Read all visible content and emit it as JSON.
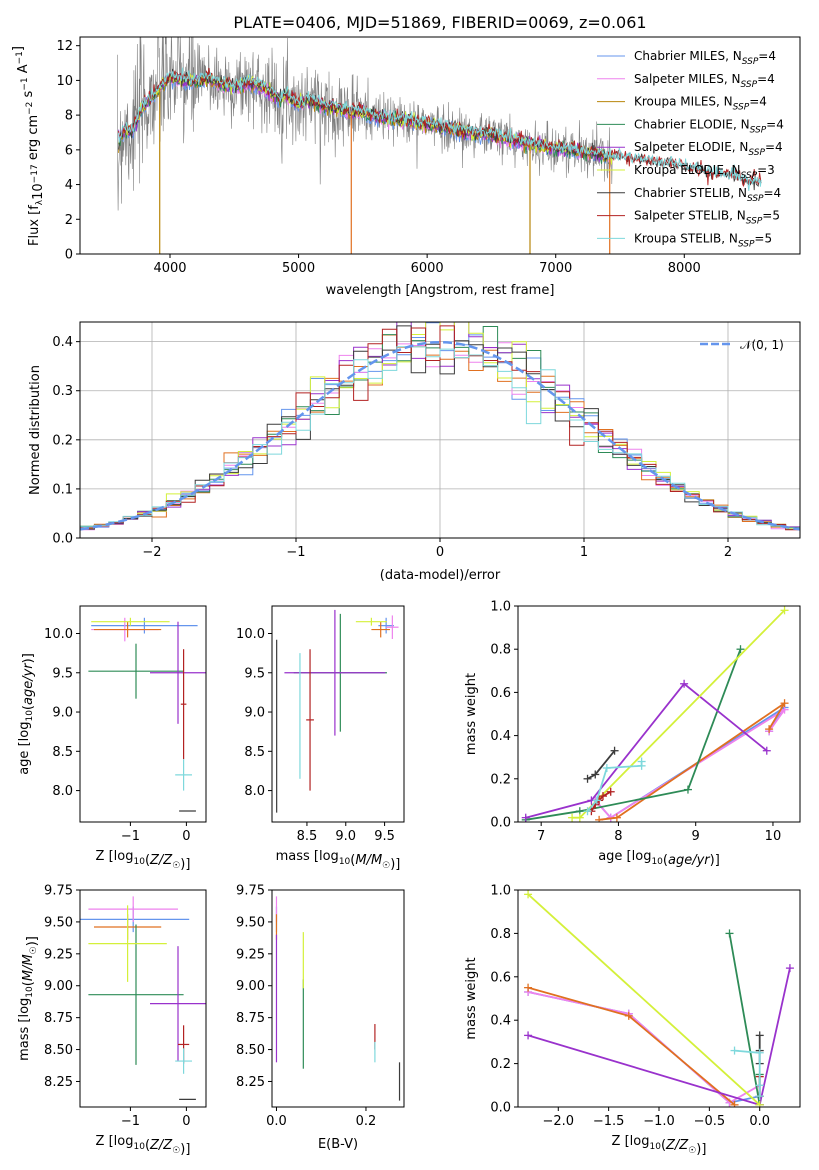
{
  "chart_data": [
    {
      "id": "spectrum",
      "type": "line",
      "title": "PLATE=0406, MJD=51869, FIBERID=0069, z=0.061",
      "xlabel": "wavelength [Angstrom, rest frame]",
      "ylabel": "Flux [f_λ10^-17 erg cm^-2 s^-1 A^-1]",
      "xlim": [
        3300,
        8900
      ],
      "ylim": [
        0,
        12.5
      ],
      "xticks": [
        4000,
        5000,
        6000,
        7000,
        8000
      ],
      "yticks": [
        0,
        2,
        4,
        6,
        8,
        10,
        12
      ],
      "grid": false,
      "legend_position": "top-right",
      "observed_color": "#7f7f7f",
      "model_continuum": {
        "x": [
          3600,
          3650,
          3700,
          3800,
          3900,
          4000,
          4100,
          4200,
          4300,
          4400,
          4500,
          4600,
          4700,
          4800,
          4860,
          4900,
          5000,
          5100,
          5200,
          5300,
          5400,
          5500,
          5600,
          5700,
          5800,
          5900,
          6000,
          6100,
          6200,
          6300,
          6400,
          6500,
          6600,
          6700,
          6800,
          6900,
          7000,
          7100,
          7200,
          7300,
          7400,
          7500,
          7600,
          7700,
          7800,
          7900,
          8000,
          8100,
          8200,
          8300,
          8400,
          8500,
          8600
        ],
        "y": [
          6.5,
          7.2,
          7.0,
          8.6,
          9.4,
          10.2,
          10.0,
          9.9,
          10.1,
          9.8,
          9.6,
          9.8,
          9.7,
          9.2,
          8.9,
          9.2,
          8.6,
          8.9,
          8.5,
          8.4,
          8.2,
          8.2,
          7.9,
          7.8,
          7.7,
          7.6,
          7.5,
          7.3,
          7.2,
          7.0,
          6.9,
          6.9,
          6.7,
          6.5,
          6.3,
          6.2,
          6.1,
          6.0,
          5.9,
          5.8,
          5.6,
          5.5,
          5.4,
          5.35,
          5.2,
          5.1,
          5.0,
          4.8,
          4.6,
          4.5,
          4.4,
          4.1,
          4.0
        ]
      },
      "observed_noise": 1.2,
      "series": [
        {
          "name": "Chabrier MILES, N_SSP=4",
          "color": "#6495ed"
        },
        {
          "name": "Salpeter MILES, N_SSP=4",
          "color": "#ee82ee"
        },
        {
          "name": "Kroupa MILES, N_SSP=4",
          "color": "#b8860b"
        },
        {
          "name": "Chabrier ELODIE, N_SSP=4",
          "color": "#2e8b57"
        },
        {
          "name": "Salpeter ELODIE, N_SSP=4",
          "color": "#9932cc"
        },
        {
          "name": "Kroupa ELODIE, N_SSP=3",
          "color": "#d4f03a"
        },
        {
          "name": "Chabrier STELIB, N_SSP=4",
          "color": "#3c3c3c"
        },
        {
          "name": "Salpeter STELIB, N_SSP=5",
          "color": "#b22222"
        },
        {
          "name": "Kroupa STELIB, N_SSP=5",
          "color": "#7ed8dc"
        }
      ],
      "legend_entries": [
        {
          "pre": "Chabrier MILES, N",
          "sub": "SSP",
          "post": "=4"
        },
        {
          "pre": "Salpeter MILES, N",
          "sub": "SSP",
          "post": "=4"
        },
        {
          "pre": "Kroupa MILES, N",
          "sub": "SSP",
          "post": "=4"
        },
        {
          "pre": "Chabrier ELODIE, N",
          "sub": "SSP",
          "post": "=4"
        },
        {
          "pre": "Salpeter ELODIE, N",
          "sub": "SSP",
          "post": "=4"
        },
        {
          "pre": "Kroupa ELODIE, N",
          "sub": "SSP",
          "post": "=3"
        },
        {
          "pre": "Chabrier STELIB, N",
          "sub": "SSP",
          "post": "=4"
        },
        {
          "pre": "Salpeter STELIB, N",
          "sub": "SSP",
          "post": "=5"
        },
        {
          "pre": "Kroupa STELIB, N",
          "sub": "SSP",
          "post": "=5"
        }
      ],
      "spikes": [
        {
          "x": 3920,
          "y": 0.0,
          "color": "#b8860b"
        },
        {
          "x": 5410,
          "y": 0.0,
          "color": "#e07020"
        },
        {
          "x": 6800,
          "y": 0.0,
          "color": "#b8860b"
        },
        {
          "x": 7420,
          "y": 0.0,
          "color": "#e07020"
        }
      ]
    },
    {
      "id": "residuals",
      "type": "line",
      "xlabel": "(data-model)/error",
      "ylabel": "Normed distribution",
      "xlim": [
        -2.5,
        2.5
      ],
      "ylim": [
        0,
        0.44
      ],
      "xticks": [
        -2,
        -1,
        0,
        1,
        2
      ],
      "yticks": [
        0.0,
        0.1,
        0.2,
        0.3,
        0.4
      ],
      "grid": true,
      "legend_position": "top-right",
      "reference_label": "𝒩(0, 1)",
      "reference_color": "#6495ed",
      "bin_width": 0.1,
      "series_colors": [
        "#6495ed",
        "#ee82ee",
        "#e07020",
        "#2e8b57",
        "#9932cc",
        "#d4f03a",
        "#3c3c3c",
        "#b22222",
        "#7ed8dc"
      ]
    },
    {
      "id": "age-vs-Z",
      "type": "scatter",
      "xlabel": "Z [log10(Z/Z☉)]",
      "ylabel": "age [log10(age/yr)]",
      "xlim": [
        -1.9,
        0.35
      ],
      "ylim": [
        7.6,
        10.35
      ],
      "xticks": [
        -1,
        0
      ],
      "yticks": [
        8.0,
        8.5,
        9.0,
        9.5,
        10.0
      ],
      "points": [
        {
          "color": "#6495ed",
          "x": -0.75,
          "xerr": 0.95,
          "y": 10.1,
          "yerr": 0.1
        },
        {
          "color": "#ee82ee",
          "x": -1.1,
          "xerr": 0.6,
          "y": 10.05,
          "yerr": 0.15
        },
        {
          "color": "#e07020",
          "x": -1.05,
          "xerr": 0.6,
          "y": 10.05,
          "yerr": 0.1
        },
        {
          "color": "#2e8b57",
          "x": -0.9,
          "xerr": 0.85,
          "y": 9.52,
          "yerr": 0.35
        },
        {
          "color": "#9932cc",
          "x": -0.15,
          "xerr": 0.5,
          "y": 9.5,
          "yerr": 0.65
        },
        {
          "color": "#d4f03a",
          "x": -1.0,
          "xerr": 0.7,
          "y": 10.15,
          "yerr": 0.05
        },
        {
          "color": "#3c3c3c",
          "x": 0.02,
          "xerr": 0.15,
          "y": 7.74,
          "yerr": 0.0
        },
        {
          "color": "#b22222",
          "x": -0.05,
          "xerr": 0.05,
          "y": 9.1,
          "yerr": 0.7
        },
        {
          "color": "#7ed8dc",
          "x": -0.05,
          "xerr": 0.15,
          "y": 8.2,
          "yerr": 0.2
        }
      ]
    },
    {
      "id": "age-vs-mass",
      "type": "scatter",
      "xlabel": "mass [log10(M/M☉)]",
      "ylabel": "",
      "xlim": [
        8.05,
        9.75
      ],
      "ylim": [
        7.6,
        10.35
      ],
      "xticks": [
        8.5,
        9.0,
        9.5
      ],
      "yticks": [
        8.0,
        8.5,
        9.0,
        9.5,
        10.0
      ],
      "points": [
        {
          "color": "#6495ed",
          "x": 9.52,
          "xerr": 0.1,
          "y": 10.1,
          "yerr": 0.1
        },
        {
          "color": "#ee82ee",
          "x": 9.6,
          "xerr": 0.08,
          "y": 10.08,
          "yerr": 0.15
        },
        {
          "color": "#e07020",
          "x": 9.45,
          "xerr": 0.12,
          "y": 10.05,
          "yerr": 0.1
        },
        {
          "color": "#2e8b57",
          "x": 8.93,
          "xerr": 0.6,
          "y": 9.5,
          "yerr": 0.75
        },
        {
          "color": "#9932cc",
          "x": 8.86,
          "xerr": 0.65,
          "y": 9.5,
          "yerr": 0.8
        },
        {
          "color": "#d4f03a",
          "x": 9.33,
          "xerr": 0.2,
          "y": 10.15,
          "yerr": 0.05
        },
        {
          "color": "#3c3c3c",
          "x": 8.11,
          "xerr": 0.0,
          "y": 8.82,
          "yerr": 1.1
        },
        {
          "color": "#b22222",
          "x": 8.54,
          "xerr": 0.05,
          "y": 8.9,
          "yerr": 0.9
        },
        {
          "color": "#7ed8dc",
          "x": 8.41,
          "xerr": 0.0,
          "y": 8.95,
          "yerr": 0.8
        }
      ]
    },
    {
      "id": "mass-weight-vs-age",
      "type": "line",
      "xlabel": "age [log10(age/yr)]",
      "ylabel": "mass weight",
      "xlim": [
        6.7,
        10.35
      ],
      "ylim": [
        0,
        1.0
      ],
      "xticks": [
        7,
        8,
        9,
        10
      ],
      "yticks": [
        0.0,
        0.2,
        0.4,
        0.6,
        0.8,
        1.0
      ],
      "series": [
        {
          "color": "#6495ed",
          "x": [
            7.7,
            7.9,
            10.15,
            9.95
          ],
          "y": [
            0.1,
            0.02,
            0.53,
            0.42
          ]
        },
        {
          "color": "#ee82ee",
          "x": [
            7.7,
            7.9,
            10.15,
            9.95
          ],
          "y": [
            0.1,
            0.02,
            0.52,
            0.42
          ]
        },
        {
          "color": "#e07020",
          "x": [
            7.75,
            7.98,
            10.15,
            9.95
          ],
          "y": [
            0.01,
            0.02,
            0.55,
            0.43
          ]
        },
        {
          "color": "#2e8b57",
          "x": [
            6.8,
            7.5,
            8.9,
            9.58
          ],
          "y": [
            0.01,
            0.05,
            0.15,
            0.8
          ]
        },
        {
          "color": "#9932cc",
          "x": [
            6.8,
            7.65,
            8.85,
            9.92
          ],
          "y": [
            0.02,
            0.1,
            0.64,
            0.33
          ]
        },
        {
          "color": "#d4f03a",
          "x": [
            7.4,
            7.5,
            10.15
          ],
          "y": [
            0.02,
            0.02,
            0.98
          ]
        },
        {
          "color": "#3c3c3c",
          "x": [
            7.6,
            7.7,
            7.95
          ],
          "y": [
            0.2,
            0.22,
            0.33
          ]
        },
        {
          "color": "#b22222",
          "x": [
            7.65,
            7.7,
            7.75,
            7.8,
            7.9
          ],
          "y": [
            0.05,
            0.08,
            0.1,
            0.12,
            0.14
          ]
        },
        {
          "color": "#7ed8dc",
          "x": [
            7.6,
            7.72,
            7.85,
            8.3,
            8.3
          ],
          "y": [
            0.05,
            0.1,
            0.25,
            0.26,
            0.28
          ]
        }
      ]
    },
    {
      "id": "mass-vs-Z",
      "type": "scatter",
      "xlabel": "Z [log10(Z/Z☉)]",
      "ylabel": "mass [log10(M/M☉)]",
      "xlim": [
        -1.9,
        0.35
      ],
      "ylim": [
        8.05,
        9.75
      ],
      "xticks": [
        -1,
        0
      ],
      "yticks": [
        8.25,
        8.5,
        8.75,
        9.0,
        9.25,
        9.5,
        9.75
      ],
      "points": [
        {
          "color": "#6495ed",
          "x": -0.95,
          "xerr": 1.0,
          "y": 9.52,
          "yerr": 0.1
        },
        {
          "color": "#ee82ee",
          "x": -0.95,
          "xerr": 0.8,
          "y": 9.6,
          "yerr": 0.1
        },
        {
          "color": "#e07020",
          "x": -1.05,
          "xerr": 0.6,
          "y": 9.46,
          "yerr": 0.1
        },
        {
          "color": "#2e8b57",
          "x": -0.9,
          "xerr": 0.85,
          "y": 8.93,
          "yerr": 0.55
        },
        {
          "color": "#9932cc",
          "x": -0.15,
          "xerr": 0.5,
          "y": 8.86,
          "yerr": 0.45
        },
        {
          "color": "#d4f03a",
          "x": -1.05,
          "xerr": 0.7,
          "y": 9.33,
          "yerr": 0.3
        },
        {
          "color": "#3c3c3c",
          "x": 0.02,
          "xerr": 0.15,
          "y": 8.11,
          "yerr": 0.0
        },
        {
          "color": "#b22222",
          "x": -0.05,
          "xerr": 0.1,
          "y": 8.54,
          "yerr": 0.15
        },
        {
          "color": "#7ed8dc",
          "x": -0.05,
          "xerr": 0.15,
          "y": 8.41,
          "yerr": 0.1
        }
      ]
    },
    {
      "id": "mass-vs-EBV",
      "type": "scatter",
      "xlabel": "E(B-V)",
      "ylabel": "",
      "xlim": [
        -0.01,
        0.285
      ],
      "ylim": [
        8.05,
        9.75
      ],
      "xticks": [
        0.0,
        0.2
      ],
      "yticks": [
        8.25,
        8.5,
        8.75,
        9.0,
        9.25,
        9.5,
        9.75
      ],
      "points": [
        {
          "color": "#6495ed",
          "x": 0.0,
          "xerr": 0.0,
          "y": 9.52,
          "yerr": 0.1
        },
        {
          "color": "#ee82ee",
          "x": 0.0,
          "xerr": 0.0,
          "y": 9.6,
          "yerr": 0.1
        },
        {
          "color": "#e07020",
          "x": 0.0,
          "xerr": 0.0,
          "y": 9.46,
          "yerr": 0.1
        },
        {
          "color": "#2e8b57",
          "x": 0.06,
          "xerr": 0.0,
          "y": 8.7,
          "yerr": 0.35
        },
        {
          "color": "#9932cc",
          "x": 0.0,
          "xerr": 0.0,
          "y": 8.9,
          "yerr": 0.5
        },
        {
          "color": "#d4f03a",
          "x": 0.06,
          "xerr": 0.0,
          "y": 9.2,
          "yerr": 0.22
        },
        {
          "color": "#3c3c3c",
          "x": 0.275,
          "xerr": 0.0,
          "y": 8.25,
          "yerr": 0.15
        },
        {
          "color": "#b22222",
          "x": 0.22,
          "xerr": 0.0,
          "y": 8.6,
          "yerr": 0.1
        },
        {
          "color": "#7ed8dc",
          "x": 0.22,
          "xerr": 0.0,
          "y": 8.48,
          "yerr": 0.08
        }
      ]
    },
    {
      "id": "mass-weight-vs-Z",
      "type": "line",
      "xlabel": "Z [log10(Z/Z☉)]",
      "ylabel": "mass weight",
      "xlim": [
        -2.4,
        0.4
      ],
      "ylim": [
        0,
        1.0
      ],
      "xticks": [
        -2.0,
        -1.5,
        -1.0,
        -0.5,
        0.0
      ],
      "yticks": [
        0.0,
        0.2,
        0.4,
        0.6,
        0.8,
        1.0
      ],
      "series": [
        {
          "color": "#6495ed",
          "x": [
            -2.3,
            -1.3,
            -0.3,
            0.0
          ],
          "y": [
            0.53,
            0.43,
            0.02,
            0.05
          ]
        },
        {
          "color": "#ee82ee",
          "x": [
            -2.3,
            -1.3,
            -0.3,
            0.0
          ],
          "y": [
            0.53,
            0.43,
            0.02,
            0.1
          ]
        },
        {
          "color": "#e07020",
          "x": [
            -2.3,
            -1.3,
            -0.25
          ],
          "y": [
            0.55,
            0.42,
            0.01
          ]
        },
        {
          "color": "#2e8b57",
          "x": [
            -0.3,
            0.0,
            0.0
          ],
          "y": [
            0.8,
            0.01,
            0.15
          ]
        },
        {
          "color": "#9932cc",
          "x": [
            -2.3,
            0.0,
            0.3
          ],
          "y": [
            0.33,
            0.01,
            0.64
          ]
        },
        {
          "color": "#d4f03a",
          "x": [
            -2.3,
            0.0
          ],
          "y": [
            0.98,
            0.01
          ]
        },
        {
          "color": "#3c3c3c",
          "x": [
            0.0,
            0.0,
            0.0
          ],
          "y": [
            0.2,
            0.26,
            0.33
          ]
        },
        {
          "color": "#b22222",
          "x": [
            0.0,
            0.0
          ],
          "y": [
            0.05,
            0.14
          ]
        },
        {
          "color": "#7ed8dc",
          "x": [
            -0.25,
            0.0,
            0.0,
            0.0
          ],
          "y": [
            0.26,
            0.25,
            0.1,
            0.05
          ]
        }
      ]
    }
  ]
}
